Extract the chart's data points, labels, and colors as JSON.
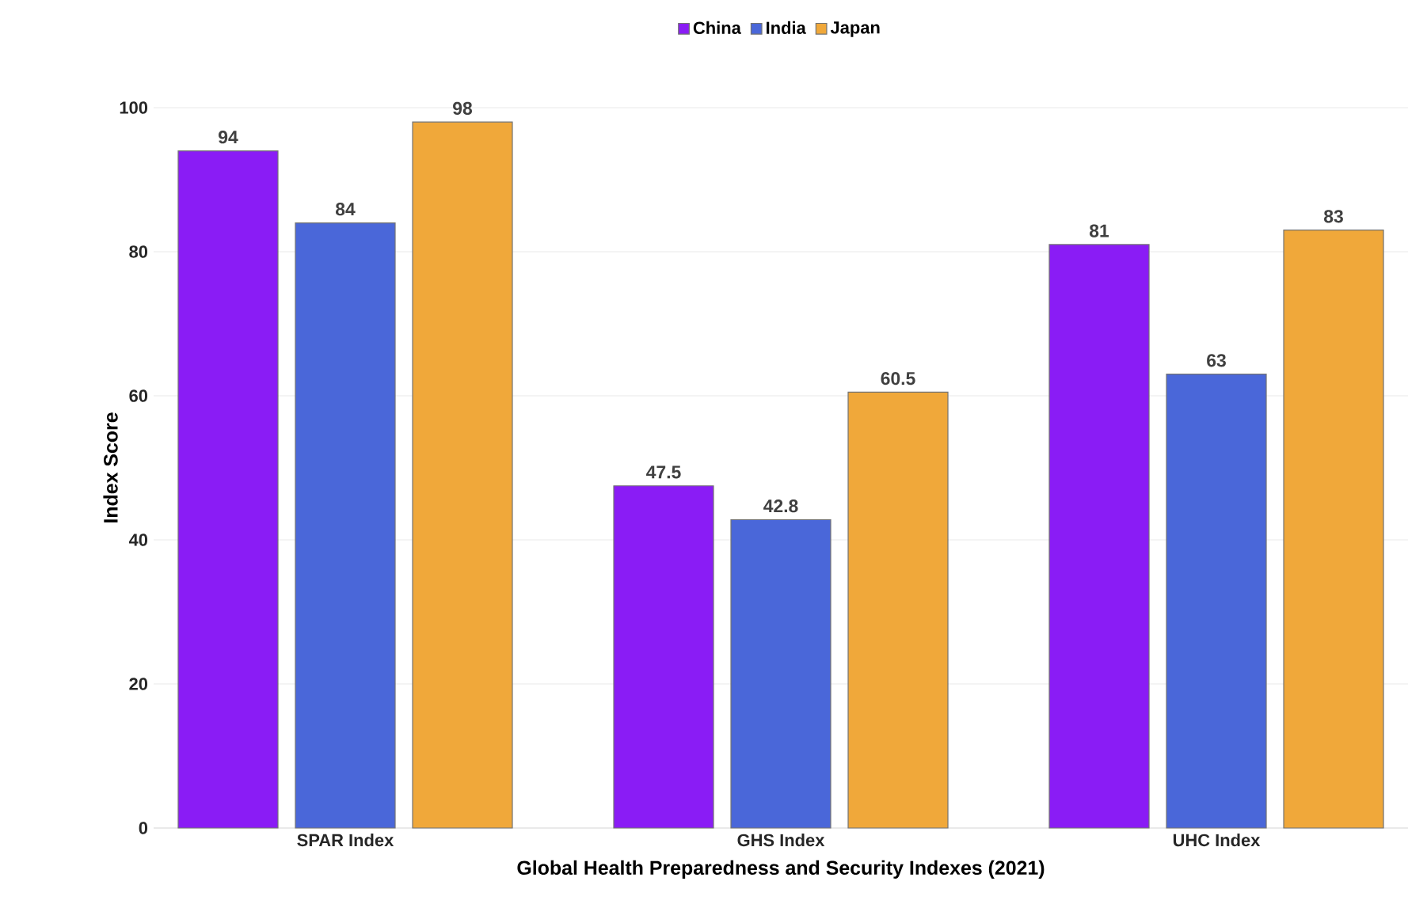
{
  "chart_data": {
    "type": "bar",
    "xlabel": "Global Health Preparedness and Security Indexes (2021)",
    "ylabel": "Index Score",
    "categories": [
      "SPAR Index",
      "GHS Index",
      "UHC Index"
    ],
    "series": [
      {
        "name": "China",
        "color": "#8a1cf5",
        "values": [
          94,
          47.5,
          81
        ]
      },
      {
        "name": "India",
        "color": "#4a67d9",
        "values": [
          84,
          42.8,
          63
        ]
      },
      {
        "name": "Japan",
        "color": "#f0a83a",
        "values": [
          98,
          60.5,
          83
        ]
      }
    ],
    "ylim": [
      0,
      100
    ],
    "yticks": [
      0,
      20,
      40,
      60,
      80,
      100
    ],
    "grid": "y",
    "legend": "top",
    "data_labels": true
  }
}
